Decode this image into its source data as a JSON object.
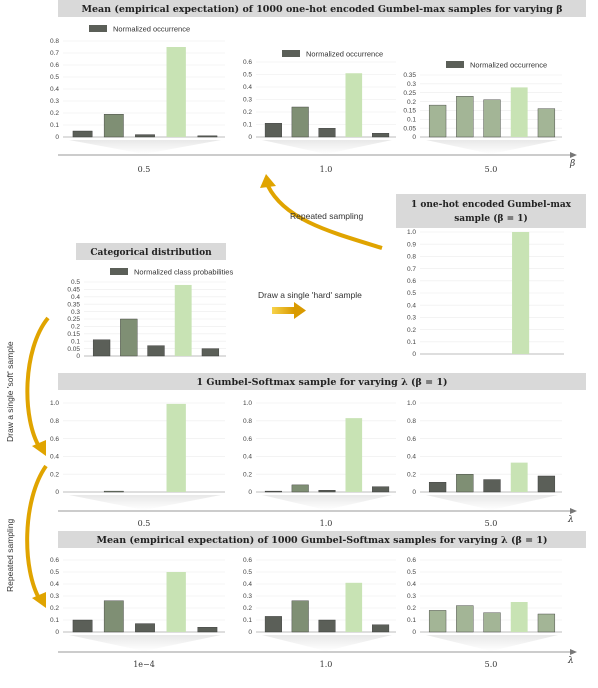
{
  "titles": {
    "top": "Mean (empirical expectation) of 1000 one-hot encoded Gumbel-max samples for varying β",
    "categorical": "Categorical distribution",
    "single_line1": "1 one-hot encoded Gumbel-max",
    "single_line2": "sample (β = 1)",
    "gumbel_softmax": "1 Gumbel-Softmax sample for varying λ  (β = 1)",
    "mean_softmax": "Mean (empirical expectation) of 1000 Gumbel-Softmax samples for varying λ  (β = 1)"
  },
  "annotations": {
    "repeated_sampling": "Repeated sampling",
    "draw_hard": "Draw a single 'hard' sample",
    "draw_soft": "Draw a single 'soft' sample",
    "repeated_sampling_side": "Repeated sampling"
  },
  "axis_symbols": {
    "beta": "β",
    "lambda": "λ"
  },
  "colors": {
    "dark": "#5b5f58",
    "mid": "#7f8f74",
    "light": "#a3b596",
    "highlight": "#c8e3b4",
    "header": "#d9d9d9",
    "arrow": "#e0a400"
  },
  "chart_data": [
    {
      "type": "bar",
      "group": "top",
      "param": "0.5",
      "legend": "Normalized occurrence",
      "yticks": [
        "0",
        "0.1",
        "0.2",
        "0.3",
        "0.4",
        "0.5",
        "0.6",
        "0.7",
        "0.8"
      ],
      "ylim": [
        0,
        0.8
      ],
      "values": [
        0.05,
        0.19,
        0.02,
        0.75,
        0.01
      ]
    },
    {
      "type": "bar",
      "group": "top",
      "param": "1.0",
      "legend": "Normalized occurrence",
      "yticks": [
        "0",
        "0.1",
        "0.2",
        "0.3",
        "0.4",
        "0.5",
        "0.6"
      ],
      "ylim": [
        0,
        0.6
      ],
      "values": [
        0.11,
        0.24,
        0.07,
        0.51,
        0.03
      ]
    },
    {
      "type": "bar",
      "group": "top",
      "param": "5.0",
      "legend": "Normalized occurrence",
      "yticks": [
        "0",
        "0.05",
        "0.1",
        "0.15",
        "0.2",
        "0.25",
        "0.3",
        "0.35"
      ],
      "ylim": [
        0,
        0.35
      ],
      "values": [
        0.18,
        0.23,
        0.21,
        0.28,
        0.16
      ]
    },
    {
      "type": "bar",
      "group": "categorical",
      "legend": "Normalized class probabilities",
      "yticks": [
        "0",
        "0.05",
        "0.1",
        "0.15",
        "0.2",
        "0.25",
        "0.3",
        "0.35",
        "0.4",
        "0.45",
        "0.5"
      ],
      "ylim": [
        0,
        0.5
      ],
      "values": [
        0.11,
        0.25,
        0.07,
        0.48,
        0.05
      ]
    },
    {
      "type": "bar",
      "group": "single",
      "yticks": [
        "0",
        "0.1",
        "0.2",
        "0.3",
        "0.4",
        "0.5",
        "0.6",
        "0.7",
        "0.8",
        "0.9",
        "1.0"
      ],
      "ylim": [
        0,
        1.0
      ],
      "values": [
        0,
        0,
        0,
        1.0,
        0
      ]
    },
    {
      "type": "bar",
      "group": "soft",
      "param": "0.5",
      "yticks": [
        "0",
        "0.2",
        "0.4",
        "0.6",
        "0.8",
        "1.0"
      ],
      "ylim": [
        0,
        1.0
      ],
      "values": [
        0,
        0.01,
        0,
        0.99,
        0
      ]
    },
    {
      "type": "bar",
      "group": "soft",
      "param": "1.0",
      "yticks": [
        "0",
        "0.2",
        "0.4",
        "0.6",
        "0.8",
        "1.0"
      ],
      "ylim": [
        0,
        1.0
      ],
      "values": [
        0.01,
        0.08,
        0.02,
        0.83,
        0.06
      ]
    },
    {
      "type": "bar",
      "group": "soft",
      "param": "5.0",
      "yticks": [
        "0",
        "0.2",
        "0.4",
        "0.6",
        "0.8",
        "1.0"
      ],
      "ylim": [
        0,
        1.0
      ],
      "values": [
        0.11,
        0.2,
        0.14,
        0.33,
        0.18
      ]
    },
    {
      "type": "bar",
      "group": "mean_soft",
      "param": "1e−4",
      "yticks": [
        "0",
        "0.1",
        "0.2",
        "0.3",
        "0.4",
        "0.5",
        "0.6"
      ],
      "ylim": [
        0,
        0.6
      ],
      "values": [
        0.1,
        0.26,
        0.07,
        0.5,
        0.04
      ]
    },
    {
      "type": "bar",
      "group": "mean_soft",
      "param": "1.0",
      "yticks": [
        "0",
        "0.1",
        "0.2",
        "0.3",
        "0.4",
        "0.5",
        "0.6"
      ],
      "ylim": [
        0,
        0.6
      ],
      "values": [
        0.13,
        0.26,
        0.1,
        0.41,
        0.06
      ]
    },
    {
      "type": "bar",
      "group": "mean_soft",
      "param": "5.0",
      "yticks": [
        "0",
        "0.1",
        "0.2",
        "0.3",
        "0.4",
        "0.5",
        "0.6"
      ],
      "ylim": [
        0,
        0.6
      ],
      "values": [
        0.18,
        0.22,
        0.16,
        0.25,
        0.15
      ]
    }
  ]
}
